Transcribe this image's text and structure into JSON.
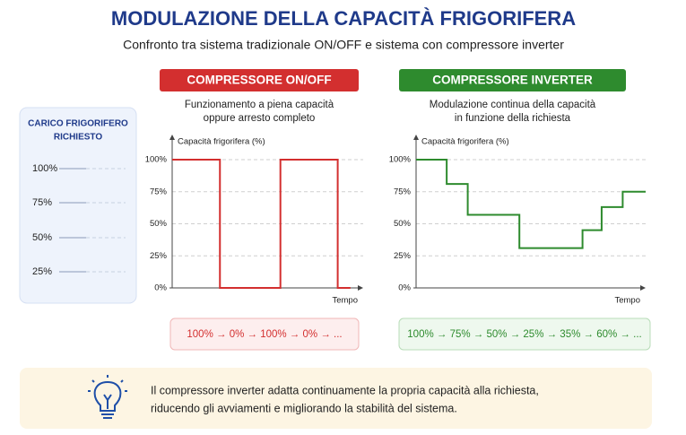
{
  "header": {
    "title": "MODULAZIONE DELLA CAPACITÀ FRIGORIFERA",
    "subtitle": "Confronto tra sistema tradizionale ON/OFF e sistema con compressore inverter"
  },
  "side_panel": {
    "title_lines": [
      "CARICO FRIGORIFERO",
      "RICHIESTO"
    ],
    "levels": [
      "100%",
      "75%",
      "50%",
      "25%"
    ]
  },
  "chart_data": [
    {
      "type": "line",
      "title": "COMPRESSORE ON/OFF",
      "subtitle_lines": [
        "Funzionamento a piena capacità",
        "oppure arresto completo"
      ],
      "y_label": "Capacità frigorifera (%)",
      "x_label": "Tempo",
      "color": "#d32f2f",
      "x": [
        0,
        3,
        3,
        6.8,
        6.8,
        10.4,
        10.4,
        11.2
      ],
      "values": [
        100,
        100,
        0,
        0,
        100,
        100,
        0,
        0
      ],
      "xlim": [
        0,
        12
      ],
      "ylim": [
        0,
        100
      ],
      "yticks": [
        {
          "value": 0,
          "label": "0%"
        },
        {
          "value": 25,
          "label": "25%"
        },
        {
          "value": 50,
          "label": "50%"
        },
        {
          "value": 75,
          "label": "75%"
        },
        {
          "value": 100,
          "label": "100%"
        }
      ],
      "grid": true,
      "sequence": "100%  →  0%  →  100%  →  0%  →  ..."
    },
    {
      "type": "line",
      "title": "COMPRESSORE INVERTER",
      "subtitle_lines": [
        "Modulazione continua della capacità",
        "in funzione della richiesta"
      ],
      "y_label": "Capacità frigorifera (%)",
      "x_label": "Tempo",
      "color": "#2e8b2e",
      "x": [
        0,
        1.6,
        1.6,
        2.7,
        2.7,
        5.4,
        5.4,
        8.7,
        8.7,
        9.7,
        9.7,
        10.8,
        10.8,
        12
      ],
      "values": [
        100,
        100,
        81,
        81,
        57,
        57,
        31,
        31,
        45,
        45,
        63,
        63,
        75,
        75
      ],
      "xlim": [
        0,
        12
      ],
      "ylim": [
        0,
        100
      ],
      "yticks": [
        {
          "value": 0,
          "label": "0%"
        },
        {
          "value": 25,
          "label": "25%"
        },
        {
          "value": 50,
          "label": "50%"
        },
        {
          "value": 75,
          "label": "75%"
        },
        {
          "value": 100,
          "label": "100%"
        }
      ],
      "grid": true,
      "sequence": "100% → 75% → 50% → 25% → 35% → 60% → ..."
    }
  ],
  "note": {
    "lines": [
      "Il compressore inverter adatta continuamente la propria capacità alla richiesta,",
      "riducendo gli avviamenti e migliorando la stabilità del sistema."
    ]
  }
}
